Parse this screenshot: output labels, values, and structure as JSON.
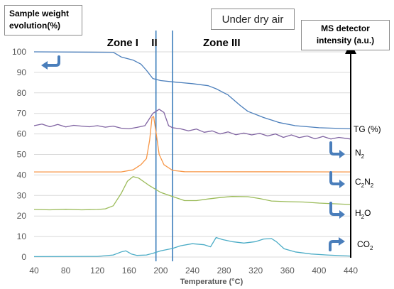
{
  "chart_data": {
    "type": "line",
    "y_left_title": "Sample weight evolution(%)",
    "y_right_title": "MS detector intensity (a.u.)",
    "condition_label": "Under dry air",
    "xlabel": "Temperature (°C)",
    "xlim": [
      40,
      440
    ],
    "ylim": [
      0,
      100
    ],
    "x_ticks": [
      "40",
      "80",
      "120",
      "160",
      "200",
      "240",
      "280",
      "320",
      "360",
      "400",
      "440"
    ],
    "y_ticks": [
      "0",
      "10",
      "20",
      "30",
      "40",
      "50",
      "60",
      "70",
      "80",
      "90",
      "100"
    ],
    "grid": true,
    "zones": [
      {
        "label": "Zone I",
        "x": 152
      },
      {
        "label": "II",
        "x": 192
      },
      {
        "label": "Zone III",
        "x": 277
      }
    ],
    "zone_boundaries": [
      194,
      215
    ],
    "series": [
      {
        "name": "TG (%)",
        "color": "#4a7ebb",
        "points": [
          [
            40,
            100
          ],
          [
            140,
            99.8
          ],
          [
            150,
            97.5
          ],
          [
            165,
            96
          ],
          [
            175,
            94
          ],
          [
            182,
            91
          ],
          [
            190,
            87
          ],
          [
            200,
            86
          ],
          [
            220,
            85.2
          ],
          [
            240,
            84.5
          ],
          [
            260,
            83.5
          ],
          [
            270,
            82
          ],
          [
            285,
            79
          ],
          [
            300,
            74
          ],
          [
            310,
            71
          ],
          [
            330,
            68
          ],
          [
            350,
            65.5
          ],
          [
            370,
            64
          ],
          [
            400,
            63
          ],
          [
            440,
            62.5
          ]
        ]
      },
      {
        "name": "N2",
        "label_main": "N",
        "label_sub": "2",
        "color": "#8064a2",
        "points": [
          [
            40,
            64
          ],
          [
            50,
            64.8
          ],
          [
            60,
            63.5
          ],
          [
            70,
            64.6
          ],
          [
            80,
            63.4
          ],
          [
            90,
            64.2
          ],
          [
            100,
            63.8
          ],
          [
            110,
            63.5
          ],
          [
            120,
            64
          ],
          [
            130,
            63.3
          ],
          [
            140,
            63.8
          ],
          [
            150,
            62.8
          ],
          [
            160,
            62.5
          ],
          [
            170,
            63.2
          ],
          [
            180,
            64
          ],
          [
            185,
            67
          ],
          [
            190,
            70
          ],
          [
            198,
            72
          ],
          [
            204,
            70.5
          ],
          [
            210,
            64
          ],
          [
            215,
            63
          ],
          [
            225,
            62.5
          ],
          [
            235,
            61.5
          ],
          [
            245,
            62.4
          ],
          [
            255,
            60.8
          ],
          [
            265,
            61.5
          ],
          [
            275,
            60
          ],
          [
            285,
            61
          ],
          [
            295,
            59.6
          ],
          [
            305,
            60.4
          ],
          [
            315,
            59.5
          ],
          [
            325,
            60.3
          ],
          [
            335,
            59
          ],
          [
            345,
            60
          ],
          [
            355,
            58.3
          ],
          [
            365,
            59.5
          ],
          [
            375,
            58.2
          ],
          [
            385,
            59
          ],
          [
            395,
            57.6
          ],
          [
            405,
            58.8
          ],
          [
            415,
            57.5
          ],
          [
            425,
            58.3
          ],
          [
            440,
            57.5
          ]
        ]
      },
      {
        "name": "C2N2",
        "label_main": "C",
        "label_sub": "2",
        "label_main2": "N",
        "label_sub2": "2",
        "color": "#f79646",
        "points": [
          [
            40,
            41.5
          ],
          [
            150,
            41.5
          ],
          [
            165,
            42.5
          ],
          [
            175,
            45
          ],
          [
            182,
            48
          ],
          [
            186,
            57
          ],
          [
            189,
            68
          ],
          [
            191,
            68.5
          ],
          [
            194,
            61
          ],
          [
            198,
            50
          ],
          [
            204,
            45
          ],
          [
            215,
            42.2
          ],
          [
            230,
            41.6
          ],
          [
            440,
            41.5
          ]
        ]
      },
      {
        "name": "H2O",
        "label_main": "H",
        "label_sub": "2",
        "label_main2": "O",
        "color": "#9bbb59",
        "points": [
          [
            40,
            23.2
          ],
          [
            60,
            23
          ],
          [
            80,
            23.3
          ],
          [
            100,
            23
          ],
          [
            120,
            23.2
          ],
          [
            130,
            23.5
          ],
          [
            140,
            25
          ],
          [
            150,
            31
          ],
          [
            158,
            37
          ],
          [
            165,
            39.2
          ],
          [
            172,
            38.5
          ],
          [
            185,
            35
          ],
          [
            200,
            31.5
          ],
          [
            215,
            29.5
          ],
          [
            230,
            27.5
          ],
          [
            245,
            27.5
          ],
          [
            260,
            28.3
          ],
          [
            275,
            29
          ],
          [
            290,
            29.5
          ],
          [
            310,
            29.4
          ],
          [
            325,
            28.5
          ],
          [
            340,
            27.3
          ],
          [
            360,
            27
          ],
          [
            380,
            26.8
          ],
          [
            400,
            26.3
          ],
          [
            440,
            25.6
          ]
        ]
      },
      {
        "name": "CO2",
        "label_main": "CO",
        "label_sub": "2",
        "color": "#4bacc6",
        "points": [
          [
            40,
            0.2
          ],
          [
            120,
            0.3
          ],
          [
            140,
            1
          ],
          [
            150,
            2.5
          ],
          [
            156,
            3
          ],
          [
            163,
            1.5
          ],
          [
            170,
            0.8
          ],
          [
            182,
            1
          ],
          [
            190,
            1.8
          ],
          [
            200,
            3
          ],
          [
            215,
            4.2
          ],
          [
            225,
            5.5
          ],
          [
            240,
            6.5
          ],
          [
            255,
            6
          ],
          [
            263,
            5
          ],
          [
            270,
            9.5
          ],
          [
            278,
            8.5
          ],
          [
            290,
            7.5
          ],
          [
            305,
            6.8
          ],
          [
            320,
            7.5
          ],
          [
            330,
            8.8
          ],
          [
            340,
            9
          ],
          [
            346,
            7.5
          ],
          [
            356,
            4
          ],
          [
            370,
            2.5
          ],
          [
            390,
            1.5
          ],
          [
            410,
            1
          ],
          [
            440,
            0.5
          ]
        ]
      }
    ]
  }
}
